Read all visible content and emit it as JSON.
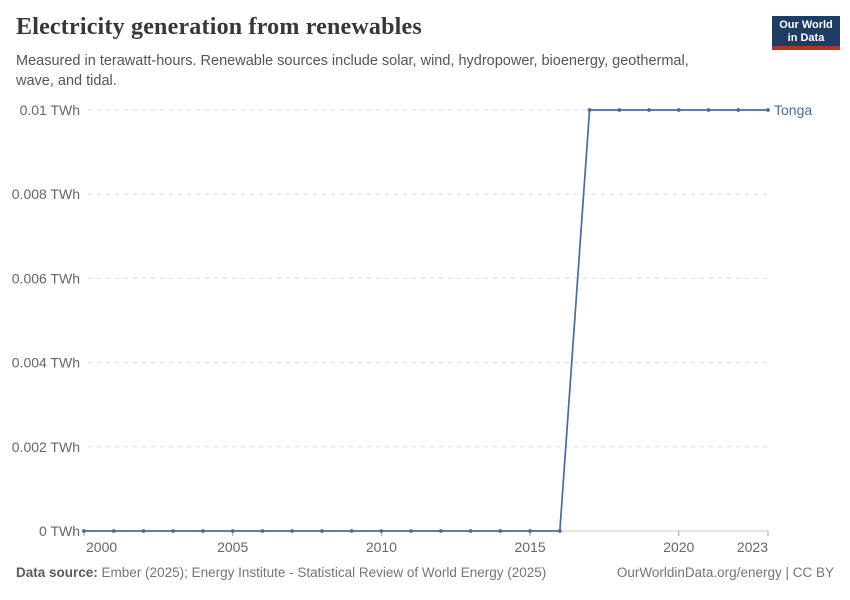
{
  "header": {
    "title": "Electricity generation from renewables",
    "subtitle": "Measured in terawatt-hours. Renewable sources include solar, wind, hydropower, bioenergy, geothermal, wave, and tidal.",
    "logo": {
      "line1": "Our World",
      "line2": "in Data"
    }
  },
  "chart_data": {
    "type": "line",
    "title": "Electricity generation from renewables",
    "unit": "TWh",
    "entity": "Tonga",
    "x": [
      2000,
      2001,
      2002,
      2003,
      2004,
      2005,
      2006,
      2007,
      2008,
      2009,
      2010,
      2011,
      2012,
      2013,
      2014,
      2015,
      2016,
      2017,
      2018,
      2019,
      2020,
      2021,
      2022,
      2023
    ],
    "series": [
      {
        "name": "Tonga",
        "values": [
          0,
          0,
          0,
          0,
          0,
          0,
          0,
          0,
          0,
          0,
          0,
          0,
          0,
          0,
          0,
          0,
          0,
          0.01,
          0.01,
          0.01,
          0.01,
          0.01,
          0.01,
          0.01
        ]
      }
    ],
    "xlim": [
      2000,
      2023
    ],
    "ylim": [
      0,
      0.01
    ],
    "xticks": [
      {
        "x": 2000,
        "label": "2000",
        "align": "start"
      },
      {
        "x": 2005,
        "label": "2005",
        "align": "middle"
      },
      {
        "x": 2010,
        "label": "2010",
        "align": "middle"
      },
      {
        "x": 2015,
        "label": "2015",
        "align": "middle"
      },
      {
        "x": 2020,
        "label": "2020",
        "align": "middle"
      },
      {
        "x": 2023,
        "label": "2023",
        "align": "end"
      }
    ],
    "yticks": [
      {
        "v": 0,
        "label": "0 TWh"
      },
      {
        "v": 0.002,
        "label": "0.002 TWh"
      },
      {
        "v": 0.004,
        "label": "0.004 TWh"
      },
      {
        "v": 0.006,
        "label": "0.006 TWh"
      },
      {
        "v": 0.008,
        "label": "0.008 TWh"
      },
      {
        "v": 0.01,
        "label": "0.01 TWh"
      }
    ],
    "grid": "horizontal-dashed",
    "legend": "entity-label-right",
    "marker": "dot"
  },
  "colors": {
    "line": "#4C6A9C",
    "gridline": "#dcdcdc",
    "axis_line": "#c8c8c8",
    "tick_mark": "#a0a0a0",
    "tick_label": "#666666",
    "logo_navy": "#1d3d63",
    "logo_red": "#b5332a"
  },
  "footer": {
    "source_label": "Data source:",
    "source_text": "Ember (2025); Energy Institute - Statistical Review of World Energy (2025)",
    "credit": "OurWorldinData.org/energy | CC BY"
  }
}
